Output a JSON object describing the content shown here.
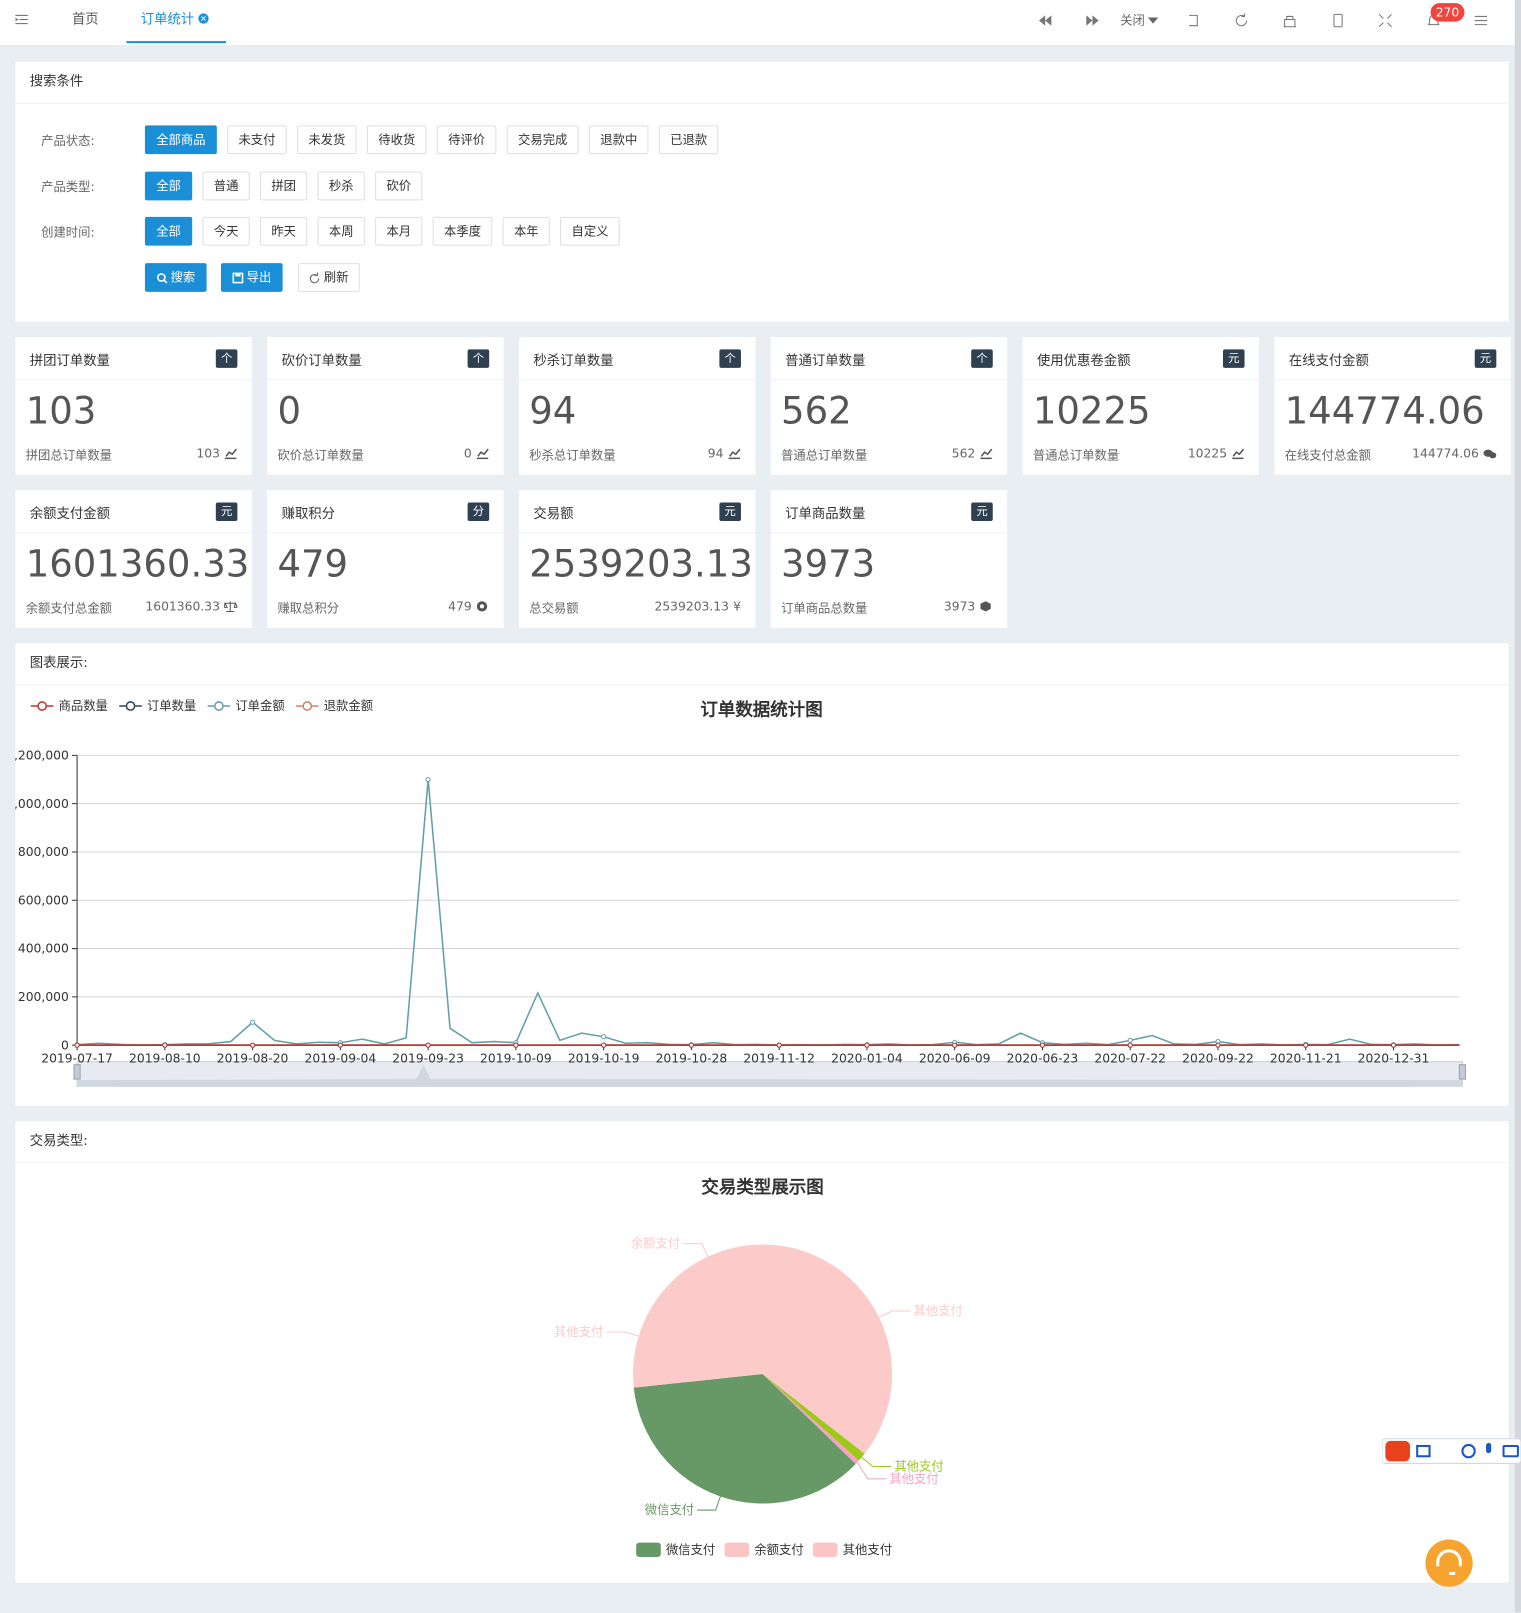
{
  "topbar": {
    "tabs": [
      "首页",
      "订单统计"
    ],
    "close": "关闭",
    "badge": 270
  },
  "search": {
    "title": "搜索条件",
    "rows": [
      {
        "label": "产品状态:",
        "options": [
          "全部商品",
          "未支付",
          "未发货",
          "待收货",
          "待评价",
          "交易完成",
          "退款中",
          "已退款"
        ]
      },
      {
        "label": "产品类型:",
        "options": [
          "全部",
          "普通",
          "拼团",
          "秒杀",
          "砍价"
        ]
      },
      {
        "label": "创建时间:",
        "options": [
          "全部",
          "今天",
          "昨天",
          "本周",
          "本月",
          "本季度",
          "本年",
          "自定义"
        ]
      }
    ],
    "actions": [
      "搜索",
      "导出",
      "刷新"
    ]
  },
  "cards": [
    {
      "title": "拼团订单数量",
      "badge": "个",
      "value": 103,
      "sub": "拼团总订单数量",
      "subvalue": 103
    },
    {
      "title": "砍价订单数量",
      "badge": "个",
      "value": 0,
      "sub": "砍价总订单数量",
      "subvalue": 0
    },
    {
      "title": "秒杀订单数量",
      "badge": "个",
      "value": 94,
      "sub": "秒杀总订单数量",
      "subvalue": 94
    },
    {
      "title": "普通订单数量",
      "badge": "个",
      "value": 562,
      "sub": "普通总订单数量",
      "subvalue": 562
    },
    {
      "title": "使用优惠卷金额",
      "badge": "元",
      "value": 10225,
      "sub": "普通总订单数量",
      "subvalue": 10225
    },
    {
      "title": "在线支付金额",
      "badge": "元",
      "value": 144774.06,
      "sub": "在线支付总金额",
      "subvalue": 144774.06
    },
    {
      "title": "余额支付金额",
      "badge": "元",
      "value": 1601360.33,
      "sub": "余额支付总金额",
      "subvalue": 1601360.33
    },
    {
      "title": "赚取积分",
      "badge": "分",
      "value": 479,
      "sub": "赚取总积分",
      "subvalue": 479
    },
    {
      "title": "交易额",
      "badge": "元",
      "value": 2539203.13,
      "sub": "总交易额",
      "subvalue": 2539203.13,
      "sub_icon": "¥"
    },
    {
      "title": "订单商品数量",
      "badge": "元",
      "value": 3973,
      "sub": "订单商品总数量",
      "subvalue": 3973
    }
  ],
  "panels": {
    "line": "图表展示:",
    "pie": "交易类型:"
  },
  "chart_data": [
    {
      "type": "line",
      "title": "订单数据统计图",
      "categories": [
        "2019-07-17",
        null,
        null,
        null,
        "2019-08-10",
        null,
        null,
        null,
        "2019-08-20",
        null,
        null,
        null,
        "2019-09-04",
        null,
        null,
        null,
        "2019-09-23",
        null,
        null,
        null,
        "2019-10-09",
        null,
        null,
        null,
        "2019-10-19",
        null,
        null,
        null,
        "2019-10-28",
        null,
        null,
        null,
        "2019-11-12",
        null,
        null,
        null,
        "2020-01-04",
        null,
        null,
        null,
        "2020-06-09",
        null,
        null,
        null,
        "2020-06-23",
        null,
        null,
        null,
        "2020-07-22",
        null,
        null,
        null,
        "2020-09-22",
        null,
        null,
        null,
        "2020-11-21",
        null,
        null,
        null,
        "2020-12-31",
        null,
        null,
        null
      ],
      "series": [
        {
          "name": "商品数量",
          "color": "#c23531",
          "values": [
            3,
            5,
            2,
            4,
            6,
            3,
            8,
            5,
            12,
            6,
            4,
            7,
            9,
            5,
            6,
            8,
            20,
            10,
            6,
            5,
            7,
            15,
            6,
            8,
            9,
            4,
            5,
            3,
            2,
            4,
            3,
            2,
            1,
            2,
            1,
            2,
            2,
            3,
            1,
            2,
            4,
            2,
            3,
            8,
            5,
            2,
            3,
            2,
            6,
            9,
            3,
            2,
            5,
            2,
            3,
            1,
            2,
            2,
            6,
            2,
            2,
            3,
            1,
            2
          ]
        },
        {
          "name": "订单数量",
          "color": "#2f4554",
          "values": [
            1,
            2,
            1,
            2,
            2,
            1,
            3,
            2,
            4,
            2,
            2,
            3,
            3,
            2,
            2,
            3,
            6,
            4,
            2,
            2,
            3,
            5,
            2,
            3,
            3,
            2,
            2,
            1,
            1,
            2,
            1,
            1,
            1,
            1,
            1,
            1,
            1,
            1,
            1,
            1,
            2,
            1,
            1,
            3,
            2,
            1,
            1,
            1,
            2,
            3,
            1,
            1,
            2,
            1,
            1,
            1,
            1,
            1,
            2,
            1,
            1,
            1,
            1,
            1
          ]
        },
        {
          "name": "订单金额",
          "color": "#61a0a8",
          "values": [
            2000,
            8000,
            3000,
            1000,
            2000,
            5000,
            6000,
            15000,
            95000,
            20000,
            5000,
            12000,
            10000,
            25000,
            5000,
            30000,
            1100000,
            70000,
            10000,
            15000,
            10000,
            216000,
            20000,
            50000,
            35000,
            8000,
            10000,
            3000,
            2000,
            10000,
            2000,
            3000,
            1000,
            2000,
            1000,
            3000,
            2000,
            5000,
            1000,
            2000,
            12000,
            2000,
            5000,
            50000,
            10000,
            3000,
            8000,
            2000,
            20000,
            40000,
            5000,
            3000,
            15000,
            2000,
            5000,
            1000,
            3000,
            2000,
            25000,
            3000,
            2000,
            5000,
            1000,
            2000
          ]
        },
        {
          "name": "退款金额",
          "color": "#d48265",
          "values": [
            0,
            0,
            0,
            0,
            0,
            0,
            0,
            0,
            0,
            0,
            0,
            0,
            0,
            0,
            0,
            0,
            0,
            0,
            0,
            0,
            0,
            0,
            0,
            0,
            0,
            0,
            0,
            0,
            0,
            0,
            0,
            0,
            0,
            0,
            0,
            0,
            0,
            0,
            0,
            0,
            0,
            0,
            0,
            0,
            0,
            0,
            0,
            0,
            0,
            0,
            0,
            0,
            0,
            0,
            0,
            0,
            0,
            0,
            0,
            0,
            0,
            0,
            0,
            0
          ]
        }
      ],
      "ylim": [
        0,
        1200000
      ],
      "yticks": [
        0,
        {
          "value": 200000,
          "label": "200,000"
        },
        {
          "value": 400000,
          "label": "400,000"
        },
        {
          "value": 600000,
          "label": "600,000"
        },
        {
          "value": 800000,
          "label": "800,000"
        },
        {
          "value": 1000000,
          "label": "1,000,000"
        },
        {
          "value": 1200000,
          "label": "1,200,000"
        }
      ],
      "grid": true
    },
    {
      "type": "pie",
      "title": "交易类型展示图",
      "categories": [
        "其他支付",
        "其他支付",
        "其他支付",
        "微信支付",
        "其他支付",
        "余额支付"
      ],
      "values": [
        128,
        4,
        2,
        130,
        46,
        50
      ],
      "colors": [
        "#fccac9",
        "#9dc719",
        "#f4a3c6",
        "#679966",
        "#fccac9",
        "#fccac9"
      ],
      "legend": [
        {
          "name": "微信支付",
          "color": "#679966"
        },
        {
          "name": "余额支付",
          "color": "#fcc5c5"
        },
        {
          "name": "其他支付",
          "color": "#fcc5c5"
        }
      ]
    }
  ]
}
